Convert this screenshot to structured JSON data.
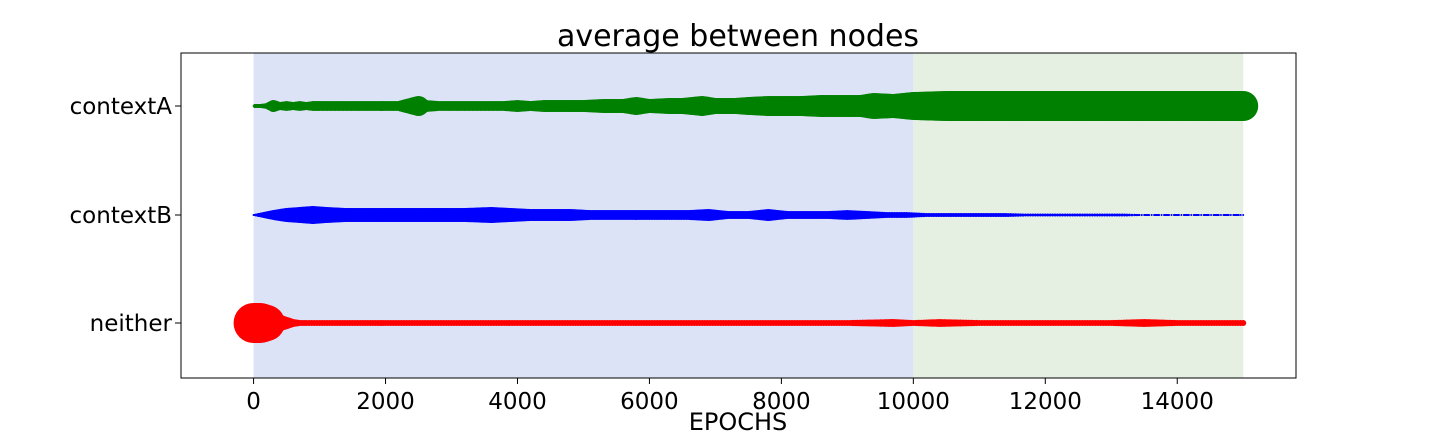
{
  "chart_data": {
    "type": "scatter",
    "title": "average between nodes",
    "xlabel": "EPOCHS",
    "ylabel": "",
    "xlim": [
      -1100,
      15800
    ],
    "x_ticks": [
      0,
      2000,
      4000,
      6000,
      8000,
      10000,
      12000,
      14000
    ],
    "x_tick_labels": [
      "0",
      "2000",
      "4000",
      "6000",
      "8000",
      "10000",
      "12000",
      "14000"
    ],
    "categories": [
      "contextA",
      "contextB",
      "neither"
    ],
    "shaded_regions": [
      {
        "x_start": 0,
        "x_end": 10000,
        "color": "#dde3f6"
      },
      {
        "x_start": 10000,
        "x_end": 15000,
        "color": "#e5f0e3"
      }
    ],
    "grid": false,
    "series": [
      {
        "name": "contextA",
        "color": "#008000",
        "points": [
          [
            0,
            1
          ],
          [
            100,
            2
          ],
          [
            200,
            3
          ],
          [
            300,
            6
          ],
          [
            400,
            4
          ],
          [
            500,
            5
          ],
          [
            600,
            4
          ],
          [
            700,
            5
          ],
          [
            800,
            4
          ],
          [
            900,
            5
          ],
          [
            1000,
            5
          ],
          [
            1200,
            5
          ],
          [
            1400,
            5
          ],
          [
            1600,
            5
          ],
          [
            1800,
            5
          ],
          [
            2000,
            5
          ],
          [
            2200,
            5
          ],
          [
            2500,
            10
          ],
          [
            2600,
            6
          ],
          [
            2800,
            5
          ],
          [
            3000,
            5
          ],
          [
            3200,
            5
          ],
          [
            3400,
            5
          ],
          [
            3600,
            5
          ],
          [
            3800,
            5
          ],
          [
            4000,
            6
          ],
          [
            4200,
            5
          ],
          [
            4400,
            6
          ],
          [
            4700,
            6
          ],
          [
            5000,
            6
          ],
          [
            5300,
            7
          ],
          [
            5600,
            7
          ],
          [
            5800,
            9
          ],
          [
            6000,
            7
          ],
          [
            6300,
            8
          ],
          [
            6500,
            8
          ],
          [
            6800,
            10
          ],
          [
            7000,
            8
          ],
          [
            7300,
            8
          ],
          [
            7500,
            9
          ],
          [
            7800,
            10
          ],
          [
            8000,
            10
          ],
          [
            8300,
            10
          ],
          [
            8600,
            11
          ],
          [
            8900,
            11
          ],
          [
            9200,
            11
          ],
          [
            9400,
            13
          ],
          [
            9700,
            12
          ],
          [
            10000,
            14
          ],
          [
            10500,
            15
          ],
          [
            11000,
            15
          ],
          [
            11500,
            15
          ],
          [
            12000,
            15
          ],
          [
            12500,
            15
          ],
          [
            13000,
            15
          ],
          [
            13500,
            15
          ],
          [
            14000,
            15
          ],
          [
            14500,
            15
          ],
          [
            15000,
            15
          ]
        ]
      },
      {
        "name": "contextB",
        "color": "#0000ff",
        "points": [
          [
            0,
            1
          ],
          [
            150,
            3
          ],
          [
            300,
            5
          ],
          [
            500,
            7
          ],
          [
            700,
            8
          ],
          [
            900,
            9
          ],
          [
            1100,
            8
          ],
          [
            1400,
            7
          ],
          [
            1700,
            7
          ],
          [
            2000,
            7
          ],
          [
            2300,
            7
          ],
          [
            2600,
            7
          ],
          [
            2900,
            7
          ],
          [
            3200,
            7
          ],
          [
            3600,
            8
          ],
          [
            3900,
            7
          ],
          [
            4200,
            6
          ],
          [
            4500,
            6
          ],
          [
            4800,
            6
          ],
          [
            5100,
            5
          ],
          [
            5400,
            5
          ],
          [
            5700,
            5
          ],
          [
            6000,
            5
          ],
          [
            6300,
            5
          ],
          [
            6600,
            5
          ],
          [
            6900,
            6
          ],
          [
            7200,
            4
          ],
          [
            7500,
            4
          ],
          [
            7800,
            6
          ],
          [
            8100,
            4
          ],
          [
            8400,
            4
          ],
          [
            8700,
            4
          ],
          [
            9000,
            5
          ],
          [
            9300,
            4
          ],
          [
            9600,
            3
          ],
          [
            9900,
            3
          ],
          [
            10200,
            2
          ],
          [
            10500,
            2
          ],
          [
            10800,
            2
          ],
          [
            11100,
            2
          ],
          [
            11400,
            2
          ],
          [
            11700,
            1.5
          ],
          [
            12000,
            1.5
          ],
          [
            12300,
            1.5
          ],
          [
            12600,
            1.5
          ],
          [
            12900,
            1.5
          ],
          [
            13200,
            1.5
          ],
          [
            13500,
            1
          ],
          [
            13800,
            1
          ],
          [
            14100,
            1
          ],
          [
            14400,
            1
          ],
          [
            14700,
            1
          ],
          [
            15000,
            1
          ]
        ]
      },
      {
        "name": "neither",
        "color": "#ff0000",
        "points": [
          [
            0,
            20
          ],
          [
            100,
            20
          ],
          [
            200,
            18
          ],
          [
            300,
            12
          ],
          [
            400,
            8
          ],
          [
            500,
            6
          ],
          [
            600,
            4
          ],
          [
            700,
            3
          ],
          [
            800,
            3
          ],
          [
            1000,
            3
          ],
          [
            1500,
            3
          ],
          [
            2000,
            3
          ],
          [
            3000,
            3
          ],
          [
            4000,
            3
          ],
          [
            5000,
            3
          ],
          [
            6000,
            3
          ],
          [
            7000,
            3
          ],
          [
            8000,
            3
          ],
          [
            9000,
            3
          ],
          [
            9700,
            4
          ],
          [
            10000,
            3
          ],
          [
            10400,
            4
          ],
          [
            11000,
            3
          ],
          [
            12000,
            3
          ],
          [
            13000,
            3
          ],
          [
            13500,
            4
          ],
          [
            14000,
            3
          ],
          [
            15000,
            3
          ]
        ]
      }
    ]
  }
}
